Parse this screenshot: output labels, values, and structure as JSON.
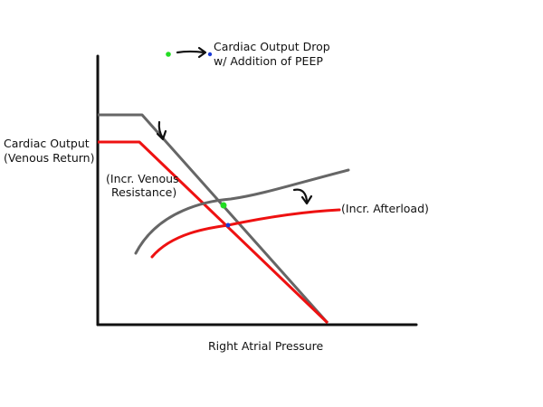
{
  "legend": {
    "line1": "Cardiac Output Drop",
    "line2": "w/ Addition of PEEP",
    "start_marker_color": "#22dd22",
    "end_marker_color": "#1a3ad6",
    "arrow_icon": "arrow-right-icon"
  },
  "axes": {
    "y_label_line1": "Cardiac Output",
    "y_label_line2": "(Venous Return)",
    "x_label": "Right Atrial Pressure"
  },
  "annotations": {
    "venous_line1": "(Incr. Venous",
    "venous_line2": "Resistance)",
    "afterload": "(Incr. Afterload)"
  },
  "colors": {
    "baseline_curves": "#666666",
    "shifted_curves": "#ee1111",
    "axes": "#111111",
    "baseline_intersection": "#22dd22",
    "shifted_intersection": "#1a3ad6"
  }
}
